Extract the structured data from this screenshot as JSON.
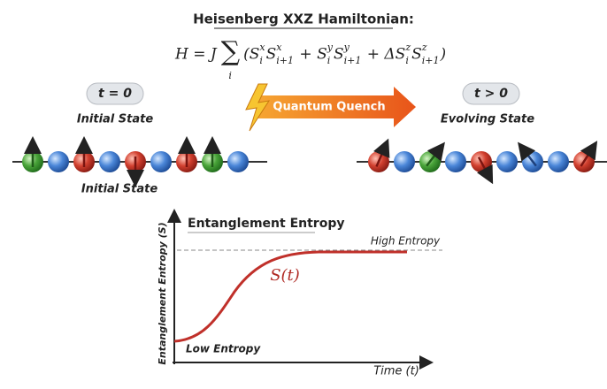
{
  "header": {
    "title": "Heisenberg XXZ Hamiltonian:"
  },
  "formula": {
    "lhs": "H = J",
    "sum": "∑",
    "index": "i",
    "body": [
      {
        "text": "(S",
        "sup": "x",
        "sub": "i"
      },
      {
        "text": "S",
        "sup": "x",
        "sub": "i+1"
      },
      {
        "text": " + S",
        "sup": "y",
        "sub": "i"
      },
      {
        "text": "S",
        "sup": "y",
        "sub": "i+1"
      },
      {
        "text": " + ΔS",
        "sup": "z",
        "sub": "i"
      },
      {
        "text": "S",
        "sup": "z",
        "sub": "i+1"
      },
      {
        "text": ")"
      }
    ]
  },
  "initial": {
    "badge": "t = 0",
    "label": "Initial State",
    "caption": "Initial State"
  },
  "quench": {
    "label": "Quantum Quench"
  },
  "evolving": {
    "badge": "t > 0",
    "label": "Evolving State"
  },
  "graph": {
    "title": "Entanglement Entropy",
    "y_label": "Entanglement Entropy (S)",
    "x_label": "Time (t)",
    "high": "High Entropy",
    "low": "Low Entropy",
    "curve": "S(t)"
  }
}
